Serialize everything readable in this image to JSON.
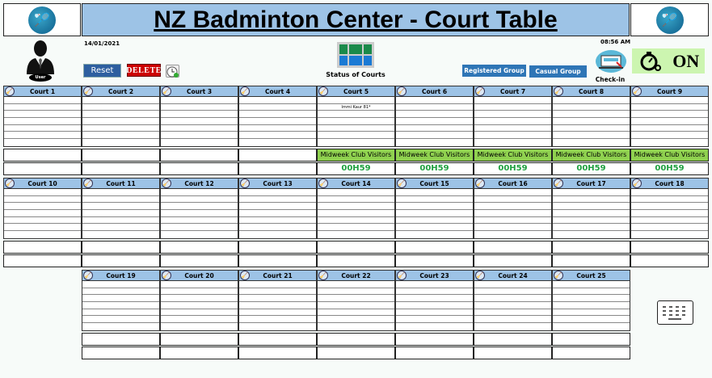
{
  "header": {
    "title": "NZ Badminton Center - Court Table",
    "date": "14/01/2021",
    "time": "08:56 AM"
  },
  "user": {
    "label": "User"
  },
  "toolbar": {
    "reset": "Reset",
    "delete": "DELETE",
    "status_of_courts": "Status of Courts",
    "registered_group": "Registered Group",
    "casual_group": "Casual Group",
    "check_in": "Check-in",
    "timer_state": "ON"
  },
  "colors": {
    "header": "#9dc3e6",
    "group_badge": "#8fd14f",
    "timer": "#1fa040",
    "button_blue": "#2e75b6"
  },
  "courts": [
    {
      "name": "Court 1",
      "players": [
        "",
        "",
        "",
        "",
        "",
        "",
        ""
      ],
      "group": "",
      "timer": ""
    },
    {
      "name": "Court 2",
      "players": [
        "",
        "",
        "",
        "",
        "",
        "",
        ""
      ],
      "group": "",
      "timer": ""
    },
    {
      "name": "Court 3",
      "players": [
        "",
        "",
        "",
        "",
        "",
        "",
        ""
      ],
      "group": "",
      "timer": ""
    },
    {
      "name": "Court 4",
      "players": [
        "",
        "",
        "",
        "",
        "",
        "",
        ""
      ],
      "group": "",
      "timer": ""
    },
    {
      "name": "Court 5",
      "players": [
        "",
        "Immi Kaur 81*",
        "",
        "",
        "",
        "",
        ""
      ],
      "group": "Midweek Club Visitors",
      "timer": "00H59"
    },
    {
      "name": "Court 6",
      "players": [
        "",
        "",
        "",
        "",
        "",
        "",
        ""
      ],
      "group": "Midweek Club Visitors",
      "timer": "00H59"
    },
    {
      "name": "Court 7",
      "players": [
        "",
        "",
        "",
        "",
        "",
        "",
        ""
      ],
      "group": "Midweek Club Visitors",
      "timer": "00H59"
    },
    {
      "name": "Court 8",
      "players": [
        "",
        "",
        "",
        "",
        "",
        "",
        ""
      ],
      "group": "Midweek Club Visitors",
      "timer": "00H59"
    },
    {
      "name": "Court 9",
      "players": [
        "",
        "",
        "",
        "",
        "",
        "",
        ""
      ],
      "group": "Midweek Club Visitors",
      "timer": "00H59"
    },
    {
      "name": "Court 10",
      "players": [
        "",
        "",
        "",
        "",
        "",
        "",
        ""
      ],
      "group": "",
      "timer": ""
    },
    {
      "name": "Court 11",
      "players": [
        "",
        "",
        "",
        "",
        "",
        "",
        ""
      ],
      "group": "",
      "timer": ""
    },
    {
      "name": "Court 12",
      "players": [
        "",
        "",
        "",
        "",
        "",
        "",
        ""
      ],
      "group": "",
      "timer": ""
    },
    {
      "name": "Court 13",
      "players": [
        "",
        "",
        "",
        "",
        "",
        "",
        ""
      ],
      "group": "",
      "timer": ""
    },
    {
      "name": "Court 14",
      "players": [
        "",
        "",
        "",
        "",
        "",
        "",
        ""
      ],
      "group": "",
      "timer": ""
    },
    {
      "name": "Court 15",
      "players": [
        "",
        "",
        "",
        "",
        "",
        "",
        ""
      ],
      "group": "",
      "timer": ""
    },
    {
      "name": "Court 16",
      "players": [
        "",
        "",
        "",
        "",
        "",
        "",
        ""
      ],
      "group": "",
      "timer": ""
    },
    {
      "name": "Court 17",
      "players": [
        "",
        "",
        "",
        "",
        "",
        "",
        ""
      ],
      "group": "",
      "timer": ""
    },
    {
      "name": "Court 18",
      "players": [
        "",
        "",
        "",
        "",
        "",
        "",
        ""
      ],
      "group": "",
      "timer": ""
    },
    {
      "name": "Court 19",
      "players": [
        "",
        "",
        "",
        "",
        "",
        "",
        ""
      ],
      "group": "",
      "timer": ""
    },
    {
      "name": "Court 20",
      "players": [
        "",
        "",
        "",
        "",
        "",
        "",
        ""
      ],
      "group": "",
      "timer": ""
    },
    {
      "name": "Court 21",
      "players": [
        "",
        "",
        "",
        "",
        "",
        "",
        ""
      ],
      "group": "",
      "timer": ""
    },
    {
      "name": "Court 22",
      "players": [
        "",
        "",
        "",
        "",
        "",
        "",
        ""
      ],
      "group": "",
      "timer": ""
    },
    {
      "name": "Court 23",
      "players": [
        "",
        "",
        "",
        "",
        "",
        "",
        ""
      ],
      "group": "",
      "timer": ""
    },
    {
      "name": "Court 24",
      "players": [
        "",
        "",
        "",
        "",
        "",
        "",
        ""
      ],
      "group": "",
      "timer": ""
    },
    {
      "name": "Court 25",
      "players": [
        "",
        "",
        "",
        "",
        "",
        "",
        ""
      ],
      "group": "",
      "timer": ""
    }
  ]
}
